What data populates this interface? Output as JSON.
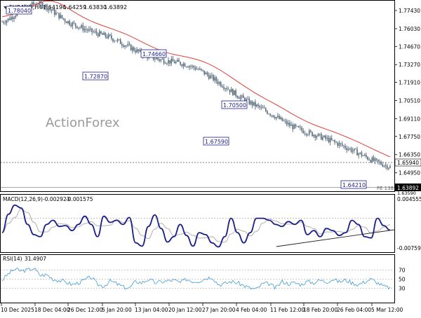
{
  "window": {
    "symbol_label": "EURAUD,H4",
    "ohlc_values": [
      "1.64196",
      "1.64259",
      "1.63830",
      "1.63892"
    ]
  },
  "watermark": "ActionForex",
  "colors": {
    "candle": "#536878",
    "ma_line": "#e0403a",
    "macd_line": "#1b1f8a",
    "macd_signal": "#b0b0b0",
    "rsi_line": "#3d9bd6",
    "label_border": "#1b1f8a",
    "grid": "#b8b8b8",
    "current_price_bg": "#000000"
  },
  "price_panel": {
    "y_ticks": [
      "1.77430",
      "1.76030",
      "1.74670",
      "1.73270",
      "1.71910",
      "1.70510",
      "1.69110",
      "1.67750",
      "1.66350",
      "1.64950"
    ],
    "current_price": "1.63892",
    "ref_price_tag": "1.65940",
    "cut_tag": "1.63590",
    "fe_label": "FE 138.2",
    "annotations": [
      "1.78040",
      "1.74660",
      "1.72870",
      "1.70500",
      "1.67590",
      "1.64210"
    ]
  },
  "macd_panel": {
    "title": "MACD(12,26,9)",
    "main_value": "-0.002923",
    "signal_value": "-0.001575",
    "y_ticks": [
      "0.004555",
      "-0.007593"
    ]
  },
  "rsi_panel": {
    "title": "RSI(14)",
    "value": "31.4907",
    "y_ticks": [
      "70",
      "50",
      "30"
    ]
  },
  "x_axis_labels": [
    "10 Dec 2025",
    "18 Dec 04:00",
    "26 Dec 12:00",
    "5 Jan 20:00",
    "13 Jan 04:00",
    "20 Jan 12:00",
    "27 Jan 20:00",
    "4 Feb 04:00",
    "11 Feb 12:00",
    "18 Feb 20:00",
    "26 Feb 04:00",
    "5 Mar 12:00"
  ],
  "chart_data": [
    {
      "type": "line",
      "title": "EURAUD,H4",
      "x_labels": [
        "10 Dec 2025",
        "18 Dec 04:00",
        "26 Dec 12:00",
        "5 Jan 20:00",
        "13 Jan 04:00",
        "20 Jan 12:00",
        "27 Jan 20:00",
        "4 Feb 04:00",
        "11 Feb 12:00",
        "18 Feb 20:00",
        "26 Feb 04:00",
        "5 Mar 12:00"
      ],
      "ylim": [
        1.6359,
        1.7813
      ],
      "series": [
        {
          "values": [
            1.7655,
            1.7675,
            1.771,
            1.7745,
            1.7775,
            1.779,
            1.7795,
            1.7775,
            1.774,
            1.7705,
            1.767,
            1.7645,
            1.7625,
            1.7605,
            1.7585,
            1.757,
            1.7555,
            1.754,
            1.752,
            1.7495,
            1.747,
            1.7445,
            1.742,
            1.7398,
            1.738,
            1.7367,
            1.7357,
            1.735,
            1.7343,
            1.7333,
            1.7318,
            1.7298,
            1.7272,
            1.7242,
            1.721,
            1.7178,
            1.7145,
            1.711,
            1.7078,
            1.705,
            1.7025,
            1.7,
            1.6975,
            1.6948,
            1.6918,
            1.6888,
            1.686,
            1.6838,
            1.682,
            1.6803,
            1.6788,
            1.677,
            1.6752,
            1.6732,
            1.6712,
            1.669,
            1.6668,
            1.6645,
            1.662,
            1.6595,
            1.6575,
            1.6558,
            1.654
          ]
        }
      ]
    },
    {
      "type": "line",
      "title": "MACD(12,26,9)",
      "x_labels": [
        "10 Dec 2025",
        "18 Dec 04:00",
        "26 Dec 12:00",
        "5 Jan 20:00",
        "13 Jan 04:00",
        "20 Jan 12:00",
        "27 Jan 20:00",
        "4 Feb 04:00",
        "11 Feb 12:00",
        "18 Feb 20:00",
        "26 Feb 04:00",
        "5 Mar 12:00"
      ],
      "ylim": [
        -0.007593,
        0.004555
      ],
      "series": [
        {
          "values": [
            -0.0035,
            0.001,
            0.0032,
            0.0025,
            -0.0015,
            -0.004,
            -0.0045,
            -0.0015,
            -0.0005,
            -0.002,
            -0.0018,
            -0.003,
            -0.0015,
            0.0005,
            -0.0015,
            -0.0045,
            0.0005,
            -0.001,
            -0.0005,
            -0.0015,
            0.0002,
            -0.006,
            -0.0068,
            -0.002,
            0.0008,
            -0.0025,
            -0.0058,
            -0.0045,
            -0.0015,
            -0.0042,
            -0.0068,
            -0.0035,
            -0.004,
            -0.006,
            -0.007,
            -0.0045,
            0.0,
            -0.0035,
            -0.006,
            -0.0035,
            0.0,
            0.0,
            -0.0005,
            -0.0015,
            -0.002,
            -0.0008,
            -0.0015,
            -0.0005,
            -0.004,
            -0.003,
            -0.0045,
            -0.0025,
            -0.003,
            -0.0042,
            -0.0035,
            -0.0005,
            -0.0015,
            -0.0045,
            -0.0048,
            0.0,
            -0.0018,
            -0.0029
          ]
        }
      ]
    },
    {
      "type": "line",
      "title": "RSI(14)",
      "x_labels": [
        "10 Dec 2025",
        "18 Dec 04:00",
        "26 Dec 12:00",
        "5 Jan 20:00",
        "13 Jan 04:00",
        "20 Jan 12:00",
        "27 Jan 20:00",
        "4 Feb 04:00",
        "11 Feb 12:00",
        "18 Feb 20:00",
        "26 Feb 04:00",
        "5 Mar 12:00"
      ],
      "ylim": [
        0,
        100
      ],
      "series": [
        {
          "values": [
            48,
            62,
            72,
            68,
            70,
            74,
            58,
            60,
            50,
            47,
            44,
            38,
            42,
            48,
            55,
            38,
            35,
            46,
            40,
            33,
            30,
            45,
            42,
            50,
            42,
            44,
            46,
            48,
            42,
            50,
            45,
            46,
            52,
            55,
            38,
            40,
            45,
            42,
            36,
            30,
            28,
            40,
            40,
            30,
            45,
            40,
            42,
            38,
            45,
            42,
            48,
            44,
            50,
            44,
            48,
            42,
            38,
            44,
            50,
            42,
            34,
            31
          ]
        }
      ]
    }
  ]
}
